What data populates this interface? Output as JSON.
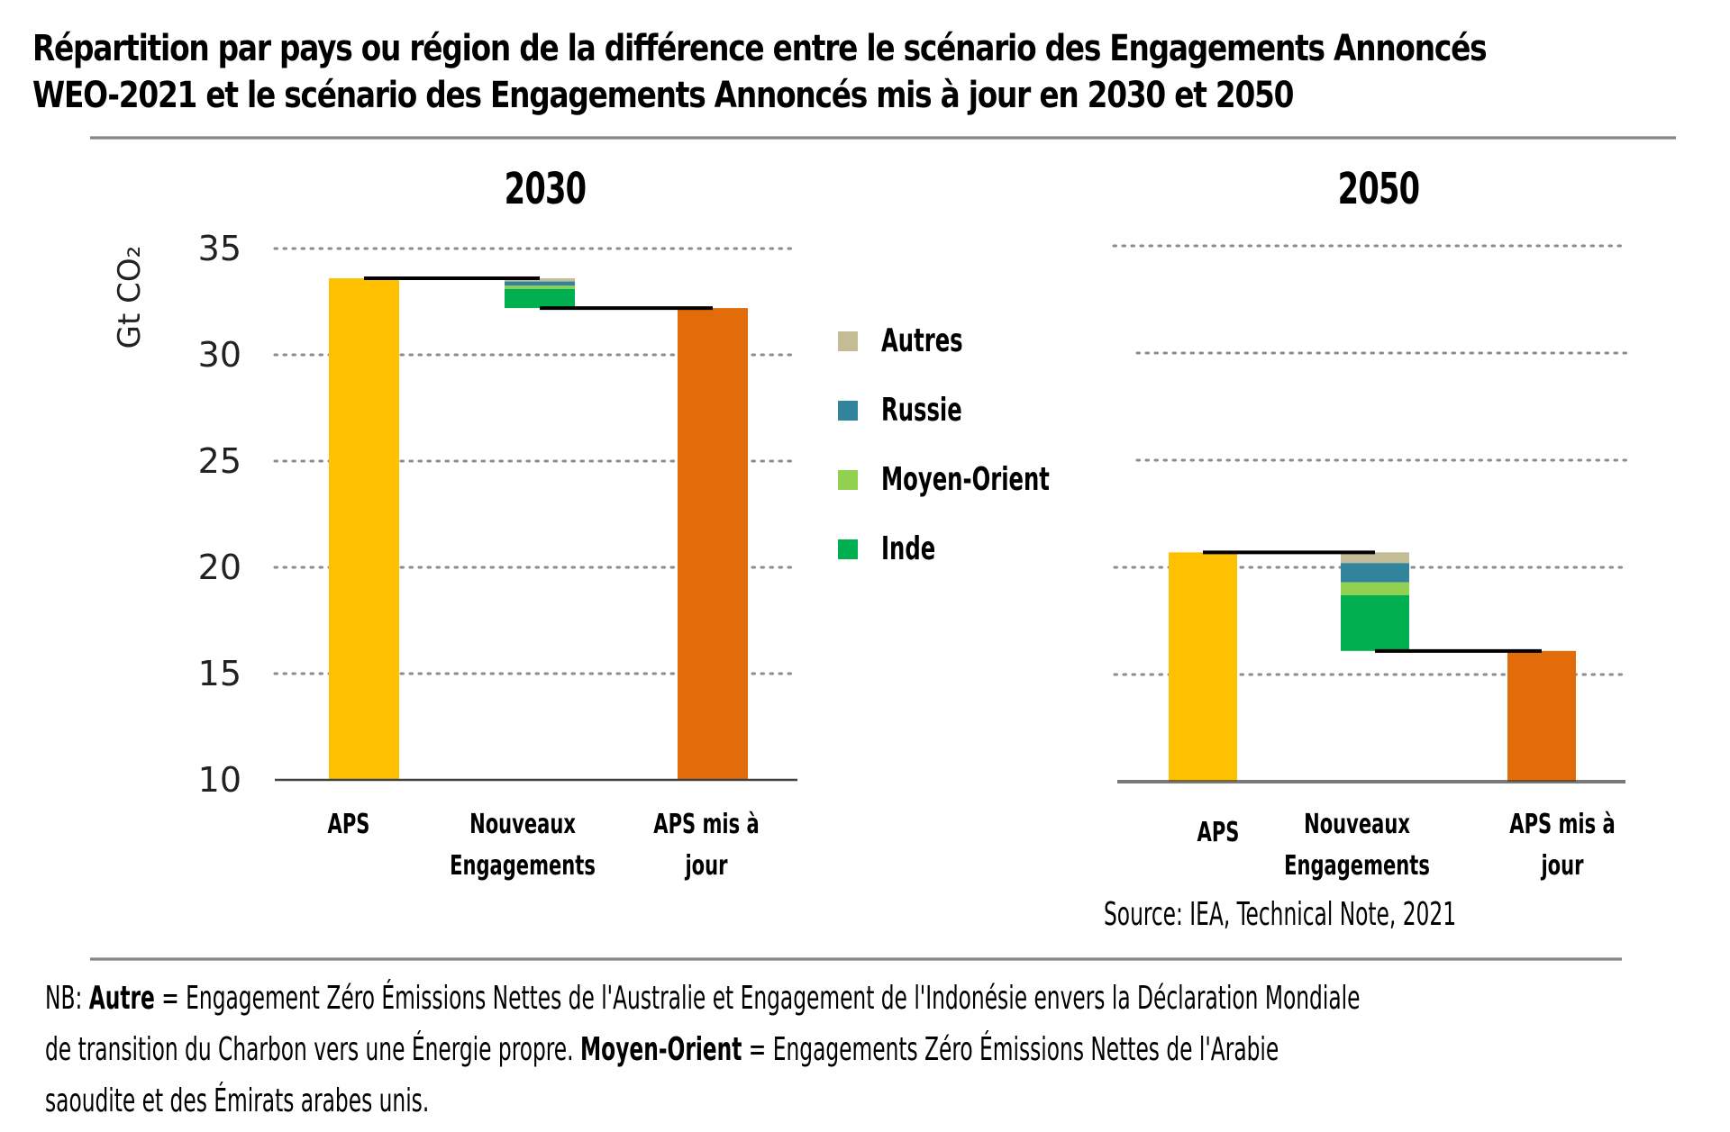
{
  "title": {
    "line1": "Répartition par pays ou région de la différence entre le scénario des Engagements Annoncés",
    "line2": "WEO-2021 et le scénario des Engagements Annoncés mis à jour en 2030 et 2050"
  },
  "legend": [
    {
      "label": "Autres",
      "color": "#c4bc96"
    },
    {
      "label": "Russie",
      "color": "#31849b"
    },
    {
      "label": "Moyen-Orient",
      "color": "#92d050"
    },
    {
      "label": "Inde",
      "color": "#00b050"
    }
  ],
  "source": "Source: IEA, Technical Note, 2021",
  "note": {
    "prefix": "NB: ",
    "term1": "Autre",
    "text1a": " = Engagement Zéro Émissions Nettes de l'Australie et Engagement de l'Indonésie envers la Déclaration Mondiale",
    "text1b": "de transition du Charbon vers une Énergie propre. ",
    "term2": "Moyen-Orient",
    "text2a": " = Engagements Zéro Émissions Nettes de l'Arabie",
    "text2b": "saoudite et des Émirats arabes unis."
  },
  "colors": {
    "aps": "#ffc000",
    "aps_updated": "#e36c0a",
    "connector": "#000000",
    "gridline": "#8c8c8c",
    "baseline": "#404040"
  },
  "chart_data": [
    {
      "type": "bar",
      "subtype": "waterfall",
      "title": "2030",
      "ylabel": "Gt CO₂",
      "ylim": [
        10,
        35
      ],
      "yticks": [
        10,
        15,
        20,
        25,
        30,
        35
      ],
      "ytick_labels": [
        "10",
        "15",
        "20",
        "25",
        "30",
        "35"
      ],
      "grid": true,
      "categories": [
        "APS",
        "Nouveaux Engagements",
        "APS mis à jour"
      ],
      "category_labels": [
        [
          "APS"
        ],
        [
          "Nouveaux",
          "Engagements"
        ],
        [
          "APS mis à",
          "jour"
        ]
      ],
      "aps": 33.6,
      "reductions": [
        {
          "name": "Autres",
          "value": 0.15
        },
        {
          "name": "Russie",
          "value": 0.2
        },
        {
          "name": "Moyen-Orient",
          "value": 0.15
        },
        {
          "name": "Inde",
          "value": 0.9
        }
      ],
      "aps_updated": 32.2
    },
    {
      "type": "bar",
      "subtype": "waterfall",
      "title": "2050",
      "ylabel": "",
      "ylim": [
        10,
        35
      ],
      "yticks": [
        10,
        15,
        20,
        25,
        30,
        35
      ],
      "ytick_labels": [],
      "grid": true,
      "categories": [
        "APS",
        "Nouveaux Engagements",
        "APS mis à jour"
      ],
      "category_labels": [
        [
          "APS"
        ],
        [
          "Nouveaux",
          "Engagements"
        ],
        [
          "APS mis à",
          "jour"
        ]
      ],
      "aps": 20.7,
      "reductions": [
        {
          "name": "Autres",
          "value": 0.5
        },
        {
          "name": "Russie",
          "value": 0.9
        },
        {
          "name": "Moyen-Orient",
          "value": 0.6
        },
        {
          "name": "Inde",
          "value": 2.6
        }
      ],
      "aps_updated": 16.1
    }
  ]
}
